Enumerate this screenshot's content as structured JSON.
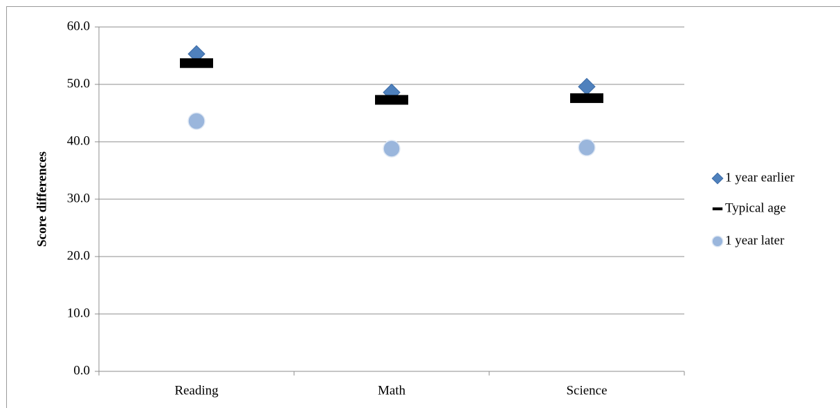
{
  "chart_data": {
    "type": "scatter",
    "y_label": "Score differences",
    "categories": [
      "Reading",
      "Math",
      "Science"
    ],
    "series": [
      {
        "name": "1 year earlier",
        "color": "#4f81bd",
        "marker": "diamond",
        "values": [
          55.3,
          48.6,
          49.6
        ]
      },
      {
        "name": "Typical age",
        "color": "#000000",
        "marker": "dash",
        "values": [
          53.7,
          47.3,
          47.6
        ]
      },
      {
        "name": "1 year later",
        "color": "#9ab6dc",
        "marker": "circle",
        "values": [
          43.6,
          38.8,
          39.0
        ]
      }
    ],
    "ylim": [
      0,
      60
    ],
    "yticks": [
      {
        "value": 0,
        "label": "0.0"
      },
      {
        "value": 10,
        "label": "10.0"
      },
      {
        "value": 20,
        "label": "20.0"
      },
      {
        "value": 30,
        "label": "30.0"
      },
      {
        "value": 40,
        "label": "40.0"
      },
      {
        "value": 50,
        "label": "50.0"
      },
      {
        "value": 60,
        "label": "60.0"
      }
    ],
    "grid": true,
    "legend": "right"
  }
}
